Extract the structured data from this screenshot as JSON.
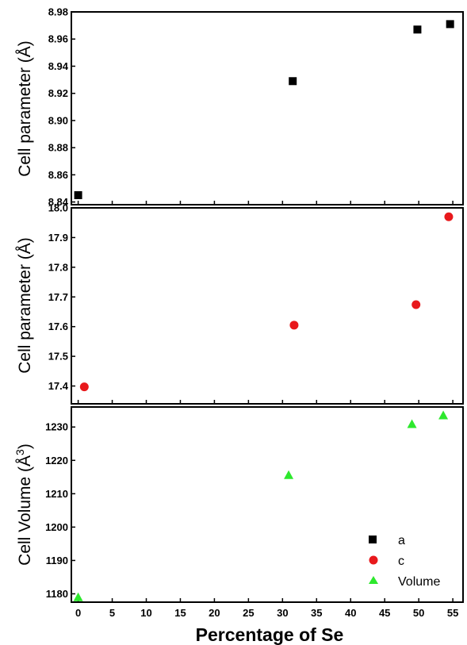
{
  "chart_data": {
    "type": "scatter",
    "xlabel": "Percentage of Se",
    "x_ticks": [
      0,
      5,
      10,
      15,
      20,
      25,
      30,
      35,
      40,
      45,
      50,
      55
    ],
    "xlim": [
      -1,
      56.5
    ],
    "panels": [
      {
        "ylabel": "Cell parameter (Å)",
        "ylim": [
          8.838,
          8.98
        ],
        "y_ticks": [
          "8.84",
          "8.86",
          "8.88",
          "8.90",
          "8.92",
          "8.94",
          "8.96",
          "8.98"
        ],
        "series": [
          {
            "name": "a",
            "marker": "square",
            "color": "#000000",
            "x": [
              0,
              31.5,
              49.8,
              54.6
            ],
            "y": [
              8.845,
              8.929,
              8.967,
              8.971
            ]
          }
        ]
      },
      {
        "ylabel": "Cell parameter (Å)",
        "ylim": [
          17.34,
          18.0
        ],
        "y_ticks": [
          "17.4",
          "17.5",
          "17.6",
          "17.7",
          "17.8",
          "17.9",
          "18.0"
        ],
        "series": [
          {
            "name": "c",
            "marker": "circle",
            "color": "#e8191c",
            "x": [
              0.9,
              31.7,
              49.6,
              54.4
            ],
            "y": [
              17.397,
              17.605,
              17.674,
              17.97
            ]
          }
        ]
      },
      {
        "ylabel_main": "Cell Volume (Å",
        "ylabel_sup": "3",
        "ylabel_end": ")",
        "ylim": [
          1177.5,
          1236
        ],
        "y_ticks": [
          "1180",
          "1190",
          "1200",
          "1210",
          "1220",
          "1230"
        ],
        "series": [
          {
            "name": "Volume",
            "marker": "triangle",
            "color": "#2de82d",
            "x": [
              0,
              30.9,
              49,
              53.6
            ],
            "y": [
              1179,
              1215.6,
              1230.9,
              1233.5
            ]
          }
        ]
      }
    ],
    "legend": {
      "placement": "bottom-right of lower panel",
      "entries": [
        "a",
        "c",
        "Volume"
      ]
    }
  }
}
